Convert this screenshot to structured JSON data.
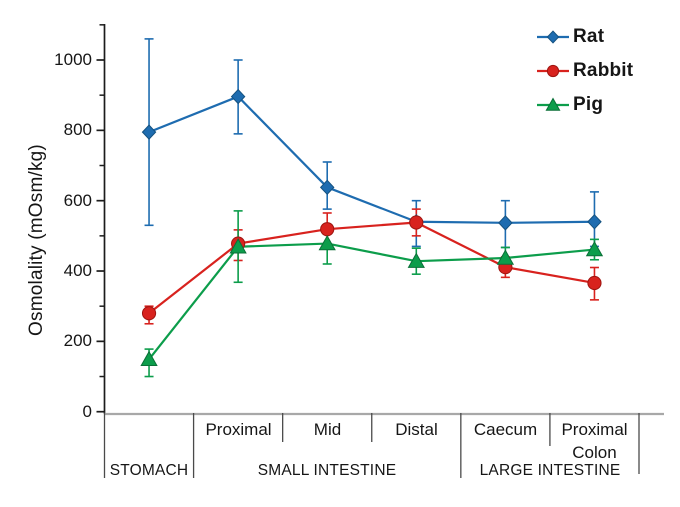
{
  "chart_data": {
    "type": "line",
    "ylabel": "Osmolality (mOsm/kg)",
    "ylim": [
      0,
      1100
    ],
    "y_major_ticks": [
      0,
      200,
      400,
      600,
      800,
      1000
    ],
    "y_minor_ticks": [
      100,
      300,
      500,
      700,
      900,
      1100
    ],
    "grid": false,
    "error_bars": true,
    "legend_position": "top-right",
    "categories": [
      "Stomach",
      "Proximal",
      "Mid",
      "Distal",
      "Caecum",
      "Proximal Colon"
    ],
    "x_axis": {
      "cell_labels": [
        "",
        "Proximal",
        "Mid",
        "Distal",
        "Caecum",
        "Proximal Colon"
      ],
      "region_labels": [
        {
          "label": "STOMACH",
          "cells": [
            0
          ]
        },
        {
          "label": "SMALL INTESTINE",
          "cells": [
            1,
            2,
            3
          ]
        },
        {
          "label": "LARGE INTESTINE",
          "cells": [
            4,
            5
          ]
        }
      ]
    },
    "series": [
      {
        "name": "Rat",
        "marker": "diamond",
        "color": "#1e6cb0",
        "values": [
          795,
          896,
          638,
          540,
          537,
          540
        ],
        "err_low": [
          530,
          790,
          576,
          470,
          467,
          470
        ],
        "err_high": [
          1060,
          1000,
          710,
          600,
          600,
          625
        ]
      },
      {
        "name": "Rabbit",
        "marker": "circle",
        "color": "#d8221e",
        "values": [
          280,
          478,
          519,
          538,
          411,
          366
        ],
        "err_low": [
          250,
          430,
          470,
          500,
          382,
          318
        ],
        "err_high": [
          300,
          517,
          565,
          576,
          440,
          410
        ]
      },
      {
        "name": "Pig",
        "marker": "triangle",
        "color": "#0c9d4b",
        "values": [
          149,
          469,
          478,
          428,
          437,
          461
        ],
        "err_low": [
          100,
          368,
          420,
          391,
          400,
          432
        ],
        "err_high": [
          178,
          571,
          510,
          465,
          467,
          490
        ]
      }
    ]
  }
}
